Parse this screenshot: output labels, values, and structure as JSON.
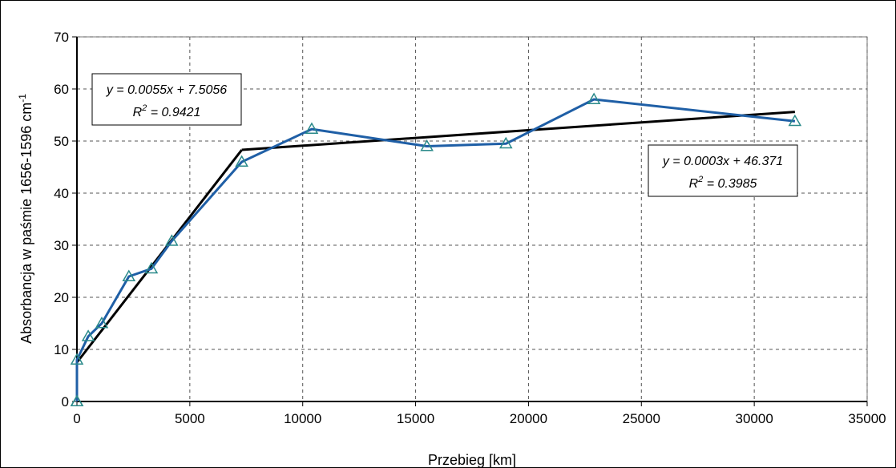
{
  "chart_data": {
    "type": "line",
    "xlabel": "Przebieg [km]",
    "ylabel": {
      "main": "Absorbancja w paśmie 1656-1596 cm",
      "superscript": "-1"
    },
    "xlim": [
      0,
      35000
    ],
    "ylim": [
      0,
      70
    ],
    "x_ticks": [
      "0",
      "5000",
      "10000",
      "15000",
      "20000",
      "25000",
      "30000",
      "35000"
    ],
    "y_ticks": [
      "0",
      "10",
      "20",
      "30",
      "40",
      "50",
      "60",
      "70"
    ],
    "grid": true,
    "series": [
      {
        "x": [
          0,
          0,
          0,
          500,
          1100,
          2300,
          3300,
          4200,
          7300,
          10400,
          15500,
          19000,
          22900,
          31800
        ],
        "y": [
          0,
          0,
          8,
          12.5,
          15,
          24,
          25.5,
          30.8,
          46,
          52.3,
          49,
          49.5,
          58,
          53.8
        ],
        "color": "#1f5fa6",
        "marker": "triangle-open",
        "marker_color": "#2a8a8a"
      }
    ],
    "trendlines": [
      {
        "x": [
          0,
          7300
        ],
        "y": [
          7.5,
          48.3
        ],
        "color": "#000000",
        "equation": "y = 0.0055x + 7.5056",
        "r2_label": "R",
        "r2_sup": "2",
        "r2_value": " = 0.9421"
      },
      {
        "x": [
          7300,
          31800
        ],
        "y": [
          48.3,
          55.6
        ],
        "color": "#000000",
        "equation": "y = 0.0003x + 46.371",
        "r2_label": "R",
        "r2_sup": "2",
        "r2_value": " = 0.3985"
      }
    ]
  }
}
